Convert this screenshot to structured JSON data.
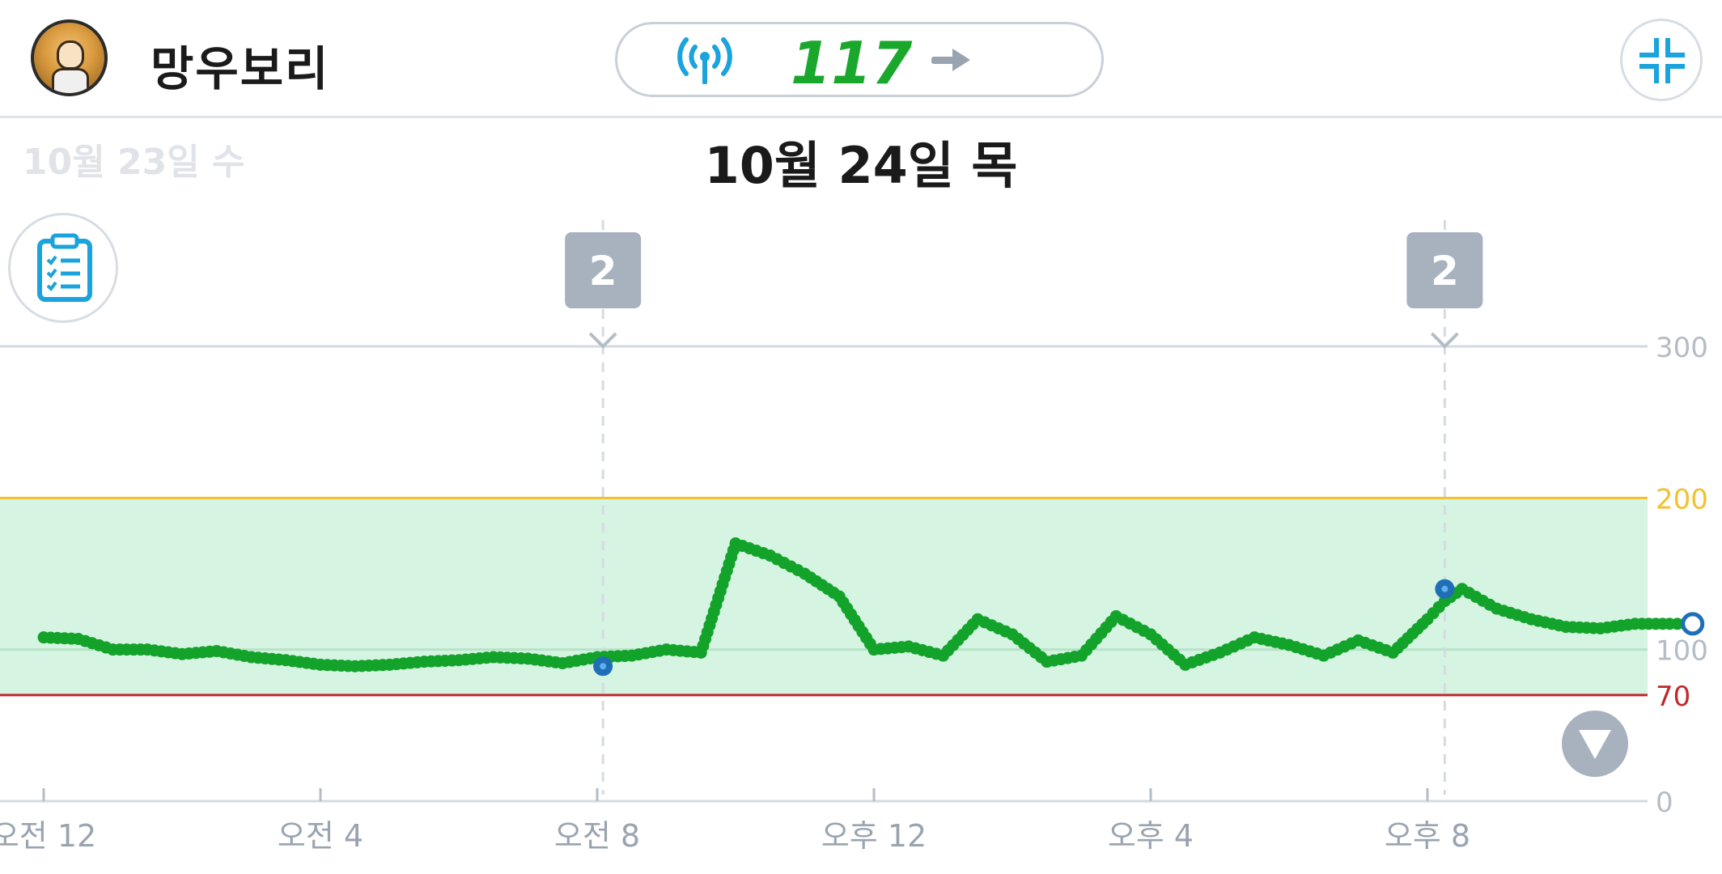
{
  "header": {
    "user_name": "망우보리",
    "current_reading": "117",
    "trend_icon": "arrow-right-icon",
    "signal_icon": "signal-broadcast-icon",
    "collapse_icon": "collapse-icon"
  },
  "dates": {
    "previous": "10월 23일 수",
    "current": "10월 24일 목"
  },
  "toolbar": {
    "clipboard_icon": "clipboard-checklist-icon",
    "scroll_down_icon": "chevron-down-icon"
  },
  "colors": {
    "line": "#13a32a",
    "target_band": "#d6f4e2",
    "high_line": "#f2c12e",
    "low_line": "#c0282d",
    "reading": "#1aa82c",
    "icon_blue": "#1aa3dc",
    "event_badge": "#a8b2bf"
  },
  "chart_data": {
    "type": "line",
    "title": "",
    "xlabel": "",
    "ylabel": "",
    "ylim": [
      0,
      300
    ],
    "yticks": [
      "300",
      "200",
      "100",
      "70",
      "0"
    ],
    "x_tick_labels": [
      "오전 12",
      "오전 4",
      "오전 8",
      "오후 12",
      "오후 4",
      "오후 8"
    ],
    "target_range": {
      "low": 70,
      "high": 200
    },
    "events": [
      {
        "time": "08:05",
        "label": "2"
      },
      {
        "time": "20:15",
        "label": "2"
      }
    ],
    "markers": [
      {
        "time": "08:05",
        "value": 89
      },
      {
        "time": "20:15",
        "value": 140
      },
      {
        "time": "23:50",
        "value": 117
      }
    ],
    "series": [
      {
        "x": [
          "00:00",
          "00:30",
          "01:00",
          "01:30",
          "02:00",
          "02:30",
          "03:00",
          "03:30",
          "04:00",
          "04:30",
          "05:00",
          "05:30",
          "06:00",
          "06:30",
          "07:00",
          "07:30",
          "08:00",
          "08:30",
          "09:00",
          "09:30",
          "10:00",
          "10:30",
          "11:00",
          "11:30",
          "12:00",
          "12:30",
          "13:00",
          "13:30",
          "14:00",
          "14:30",
          "15:00",
          "15:30",
          "16:00",
          "16:30",
          "17:00",
          "17:30",
          "18:00",
          "18:30",
          "19:00",
          "19:30",
          "20:00",
          "20:15",
          "20:30",
          "21:00",
          "21:30",
          "22:00",
          "22:30",
          "23:00",
          "23:30",
          "23:50"
        ],
        "y": [
          108,
          107,
          100,
          100,
          97,
          99,
          95,
          93,
          90,
          89,
          90,
          92,
          93,
          95,
          94,
          91,
          95,
          96,
          100,
          98,
          170,
          162,
          150,
          135,
          100,
          102,
          96,
          120,
          110,
          92,
          96,
          122,
          110,
          90,
          98,
          108,
          103,
          96,
          106,
          98,
          120,
          132,
          140,
          127,
          120,
          115,
          114,
          117,
          117,
          117
        ]
      }
    ]
  }
}
